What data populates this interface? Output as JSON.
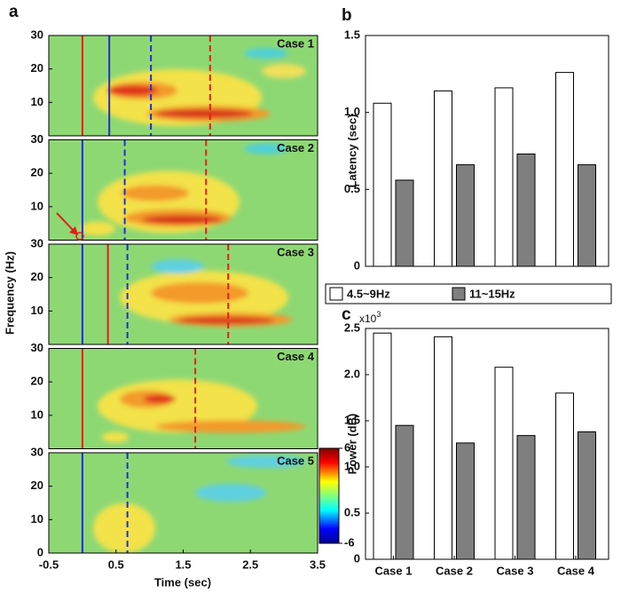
{
  "chart_data": [
    {
      "type": "spectrogram",
      "panel_label": "a",
      "xlabel": "Time (sec)",
      "ylabel": "Frequency (Hz)",
      "xlim": [
        -0.5,
        3.5
      ],
      "xticks": [
        -0.5,
        0.5,
        1.5,
        2.5,
        3.5
      ],
      "ylim": [
        0,
        30
      ],
      "panels": [
        {
          "label": "Case 1",
          "yticks": [
            10,
            20,
            30
          ],
          "lines": [
            {
              "color": "#e0201b",
              "style": "solid",
              "x": 0
            },
            {
              "color": "#1f2fd0",
              "style": "solid",
              "x": 0.4
            },
            {
              "color": "#1f2fd0",
              "style": "dashed",
              "x": 1.02
            },
            {
              "color": "#e0201b",
              "style": "dashed",
              "x": 1.9
            }
          ]
        },
        {
          "label": "Case 2",
          "yticks": [
            10,
            20,
            30
          ],
          "lines": [
            {
              "color": "#1f2fd0",
              "style": "solid",
              "x": 0
            },
            {
              "color": "#1f2fd0",
              "style": "dashed",
              "x": 0.63
            },
            {
              "color": "#e0201b",
              "style": "dashed",
              "x": 1.84
            }
          ]
        },
        {
          "label": "Case 3",
          "yticks": [
            10,
            20,
            30
          ],
          "lines": [
            {
              "color": "#1f2fd0",
              "style": "solid",
              "x": 0
            },
            {
              "color": "#e0201b",
              "style": "solid",
              "x": 0.38
            },
            {
              "color": "#1f2fd0",
              "style": "dashed",
              "x": 0.67
            },
            {
              "color": "#e0201b",
              "style": "dashed",
              "x": 2.17
            }
          ]
        },
        {
          "label": "Case 4",
          "yticks": [
            10,
            20,
            30
          ],
          "lines": [
            {
              "color": "#e0201b",
              "style": "solid",
              "x": 0
            },
            {
              "color": "#e0201b",
              "style": "dashed",
              "x": 1.68
            }
          ]
        },
        {
          "label": "Case 5",
          "yticks": [
            0,
            10,
            20,
            30
          ],
          "lines": [
            {
              "color": "#1f2fd0",
              "style": "solid",
              "x": 0
            },
            {
              "color": "#1f2fd0",
              "style": "dashed",
              "x": 0.67
            }
          ]
        }
      ],
      "colorbar": {
        "lim": [
          -6,
          6
        ],
        "ticks": [
          6,
          -6
        ]
      }
    },
    {
      "type": "bar",
      "panel_label": "b",
      "ylabel": "Latency (sec)",
      "ylim": [
        0,
        1.5
      ],
      "yticks": [
        0,
        0.5,
        {
          "value": 1,
          "label": "1.0"
        },
        1.5
      ],
      "series": [
        {
          "name": "4.5~9Hz",
          "color": "#ffffff",
          "values": [
            1.06,
            1.14,
            1.16,
            1.26
          ]
        },
        {
          "name": "11~15Hz",
          "color": "#7f7f7f",
          "values": [
            0.56,
            0.66,
            0.73,
            0.66
          ]
        }
      ]
    },
    {
      "type": "bar",
      "panel_label": "c",
      "ylabel": "Power (dB)",
      "axis_multiplier": "x10",
      "axis_multiplier_exponent": "3",
      "categories": [
        "Case 1",
        "Case 2",
        "Case 3",
        "Case 4"
      ],
      "ylim": [
        0,
        2.5
      ],
      "yticks": [
        0,
        0.5,
        {
          "value": 1,
          "label": "1.0"
        },
        1.5,
        {
          "value": 2,
          "label": "2.0"
        },
        2.5
      ],
      "series": [
        {
          "color": "#ffffff",
          "values": [
            2.45,
            2.41,
            2.08,
            1.8
          ]
        },
        {
          "color": "#7f7f7f",
          "values": [
            1.45,
            1.26,
            1.34,
            1.38
          ]
        }
      ]
    }
  ]
}
